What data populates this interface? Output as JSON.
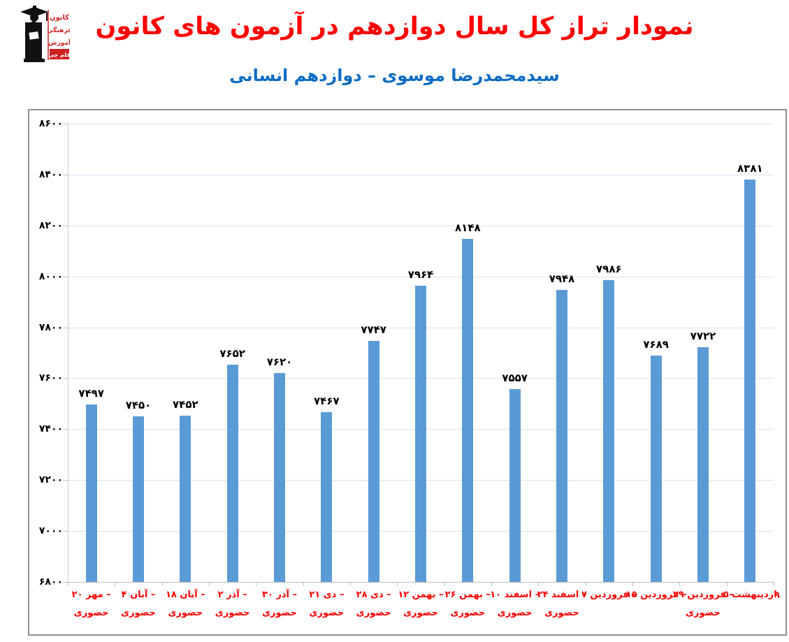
{
  "header": {
    "title": "نمودار تراز کل سال دوازدهم در آزمون های کانون",
    "subtitle": "سیدمحمدرضا موسوی – دوازدهم انسانی",
    "logo": {
      "word1": "کانون",
      "word2": "فرهنگی",
      "word3": "آموزش",
      "badge": "قلم چی",
      "icon": "graduate-figure",
      "accent_color": "#cc2222"
    }
  },
  "colors": {
    "title": "#ff0000",
    "subtitle": "#0b6bc4",
    "bar": "#5b9bd5",
    "gridline": "#d9e2f3",
    "axis": "#bfbfbf",
    "category_label": "#ff0000",
    "value_label": "#000000",
    "frame_border": "#8f8f8f"
  },
  "chart_data": {
    "type": "bar",
    "title": "نمودار تراز کل سال دوازدهم در آزمون های کانون",
    "subtitle": "سیدمحمدرضا موسوی – دوازدهم انسانی",
    "xlabel": "",
    "ylabel": "",
    "ylim": [
      6800,
      8600
    ],
    "grid": "on",
    "legend": "none",
    "bar_color": "#5b9bd5",
    "categories": [
      "۲۰ مهر –",
      "۴ آبان –",
      "۱۸ آبان –",
      "۲ آذر –",
      "۳۰ آذر –",
      "۲۱ دی –",
      "۲۸ دی –",
      "۱۲ بهمن –",
      "۲۶ بهمن –",
      "۱۰ اسفند –",
      "۲۴ اسفند –",
      "۷ فروردین –",
      "۱۵ فروردین –",
      "۲۹ فروردین –",
      "۵ اردیبهشت"
    ],
    "category_sublabels": [
      "حضوری",
      "حضوری",
      "حضوری",
      "حضوری",
      "حضوری",
      "حضوری",
      "حضوری",
      "حضوری",
      "حضوری",
      "حضوری",
      "حضوری",
      "",
      "",
      "حضوری",
      ""
    ],
    "values": [
      7497,
      7450,
      7452,
      7652,
      7620,
      7467,
      7747,
      7964,
      8148,
      7557,
      7948,
      7986,
      7689,
      7722,
      8381
    ],
    "value_labels": [
      "۷۴۹۷",
      "۷۴۵۰",
      "۷۴۵۲",
      "۷۶۵۲",
      "۷۶۲۰",
      "۷۴۶۷",
      "۷۷۴۷",
      "۷۹۶۴",
      "۸۱۴۸",
      "۷۵۵۷",
      "۷۹۴۸",
      "۷۹۸۶",
      "۷۶۸۹",
      "۷۷۲۲",
      "۸۳۸۱"
    ],
    "y_tick_values": [
      6800,
      7000,
      7200,
      7400,
      7600,
      7800,
      8000,
      8200,
      8400,
      8600
    ],
    "y_tick_labels": [
      "۶۸۰۰",
      "۷۰۰۰",
      "۷۲۰۰",
      "۷۴۰۰",
      "۷۶۰۰",
      "۷۸۰۰",
      "۸۰۰۰",
      "۸۲۰۰",
      "۸۴۰۰",
      "۸۶۰۰"
    ],
    "stray_glyph": "۹"
  }
}
